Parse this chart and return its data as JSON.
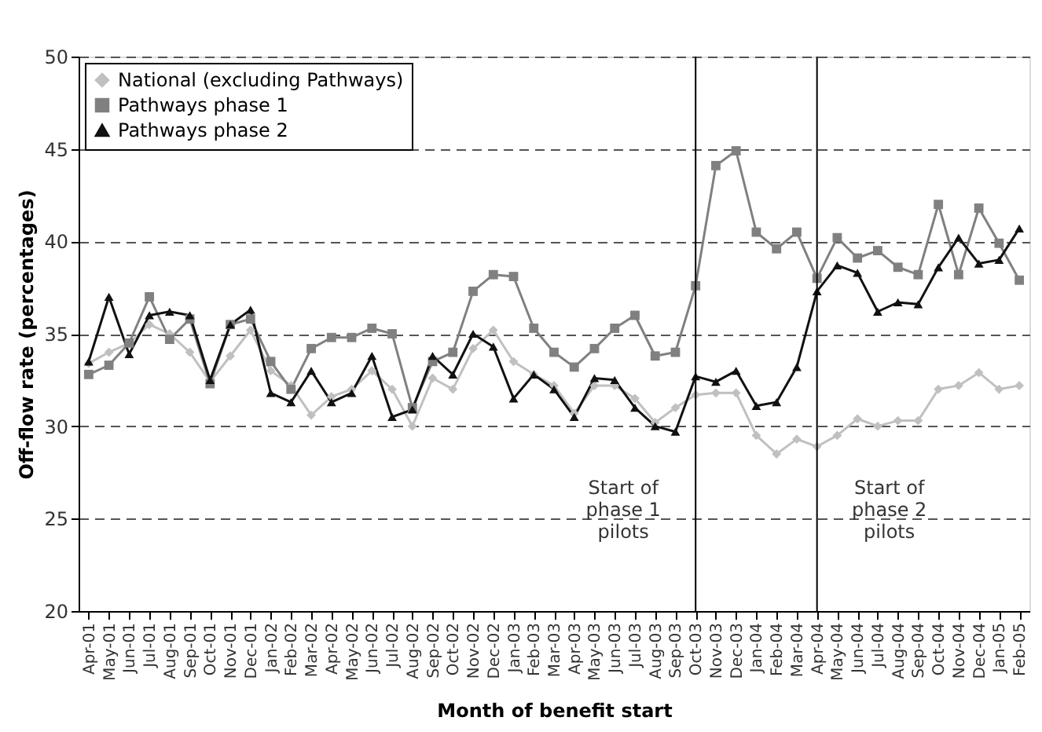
{
  "chart_data": {
    "type": "line",
    "xlabel": "Month of benefit start",
    "ylabel": "Off-flow rate (percentages)",
    "categories": [
      "Apr-01",
      "May-01",
      "Jun-01",
      "Jul-01",
      "Aug-01",
      "Sep-01",
      "Oct-01",
      "Nov-01",
      "Dec-01",
      "Jan-02",
      "Feb-02",
      "Mar-02",
      "Apr-02",
      "May-02",
      "Jun-02",
      "Jul-02",
      "Aug-02",
      "Sep-02",
      "Oct-02",
      "Nov-02",
      "Dec-02",
      "Jan-03",
      "Feb-03",
      "Mar-03",
      "Apr-03",
      "May-03",
      "Jun-03",
      "Jul-03",
      "Aug-03",
      "Sep-03",
      "Oct-03",
      "Nov-03",
      "Dec-03",
      "Jan-04",
      "Feb-04",
      "Mar-04",
      "Apr-04",
      "May-04",
      "Jun-04",
      "Jul-04",
      "Aug-04",
      "Sep-04",
      "Oct-04",
      "Nov-04",
      "Dec-04",
      "Jan-05",
      "Feb-05"
    ],
    "series": [
      {
        "name": "National (excluding Pathways)",
        "color": "#c0c0c0",
        "marker": "diamond",
        "values": [
          33.4,
          34.0,
          34.5,
          35.5,
          35.0,
          34.0,
          32.4,
          33.8,
          35.2,
          33.0,
          32.2,
          30.6,
          31.6,
          32.0,
          33.0,
          32.0,
          30.0,
          32.6,
          32.0,
          34.2,
          35.2,
          33.5,
          32.8,
          32.2,
          30.7,
          32.2,
          32.2,
          31.5,
          30.2,
          31.0,
          31.7,
          31.8,
          31.8,
          29.5,
          28.5,
          29.3,
          28.9,
          29.5,
          30.4,
          30.0,
          30.3,
          30.3,
          32.0,
          32.2,
          32.9,
          32.0,
          32.2
        ]
      },
      {
        "name": "Pathways phase 1",
        "color": "#808080",
        "marker": "square",
        "values": [
          32.8,
          33.3,
          34.5,
          37.0,
          34.7,
          35.8,
          32.3,
          35.5,
          35.8,
          33.5,
          32.0,
          34.2,
          34.8,
          34.8,
          35.3,
          35.0,
          31.0,
          33.5,
          34.0,
          37.3,
          38.2,
          38.1,
          35.3,
          34.0,
          33.2,
          34.2,
          35.3,
          36.0,
          33.8,
          34.0,
          37.6,
          44.1,
          44.9,
          40.5,
          39.6,
          40.5,
          38.0,
          40.2,
          39.1,
          39.5,
          38.6,
          38.2,
          42.0,
          38.2,
          41.8,
          39.9,
          37.9
        ]
      },
      {
        "name": "Pathways phase 2",
        "color": "#111111",
        "marker": "triangle",
        "values": [
          33.5,
          37.0,
          33.9,
          36.0,
          36.2,
          36.0,
          32.5,
          35.5,
          36.3,
          31.8,
          31.3,
          33.0,
          31.3,
          31.8,
          33.8,
          30.5,
          30.9,
          33.8,
          32.8,
          35.0,
          34.3,
          31.5,
          32.8,
          32.0,
          30.5,
          32.6,
          32.5,
          31.0,
          30.0,
          29.7,
          32.7,
          32.4,
          33.0,
          31.1,
          31.3,
          33.2,
          37.3,
          38.7,
          38.3,
          36.2,
          36.7,
          36.6,
          38.6,
          40.2,
          38.8,
          39.0,
          40.7
        ]
      }
    ],
    "ylim": [
      20,
      50
    ],
    "yticks": [
      20,
      25,
      30,
      35,
      40,
      45,
      50
    ],
    "grid": "y",
    "line_style": "solid",
    "legend": "top left",
    "ref_lines": [
      {
        "axis": "x",
        "value": "Oct-03",
        "color": "#000000"
      },
      {
        "axis": "x",
        "value": "Apr-04",
        "color": "#000000"
      }
    ],
    "annotations": [
      {
        "text": "Start of\nphase 1\npilots",
        "x": "Oct-03",
        "y": 27
      },
      {
        "text": "Start of\nphase 2\npilots",
        "x": "Apr-04",
        "y": 27
      }
    ]
  }
}
